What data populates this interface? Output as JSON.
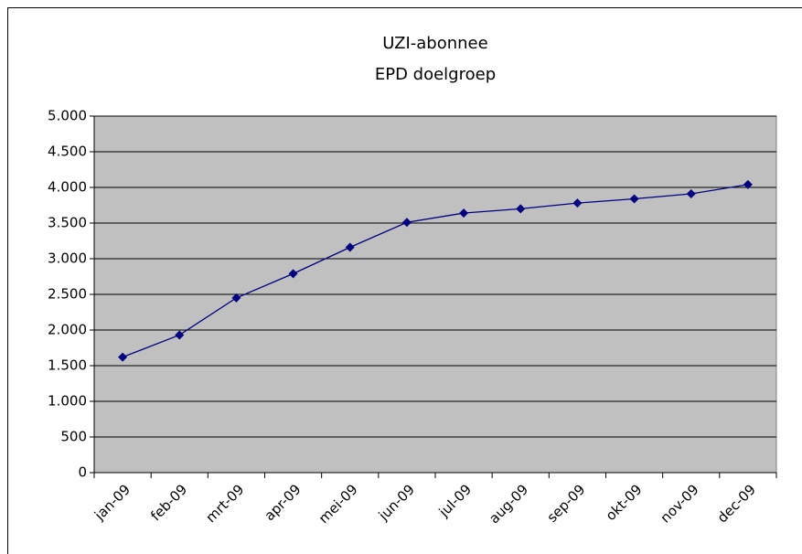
{
  "chart_data": {
    "type": "line",
    "title": [
      "UZI-abonnee",
      "EPD doelgroep"
    ],
    "categories": [
      "jan-09",
      "feb-09",
      "mrt-09",
      "apr-09",
      "mei-09",
      "jun-09",
      "jul-09",
      "aug-09",
      "sep-09",
      "okt-09",
      "nov-09",
      "dec-09"
    ],
    "series": [
      {
        "color": "#000080",
        "values": [
          1620,
          1930,
          2450,
          2790,
          3160,
          3510,
          3640,
          3700,
          3780,
          3840,
          3910,
          4040
        ]
      }
    ],
    "ylim": [
      0,
      5000
    ],
    "yticks": [
      0,
      500,
      {
        "value": 1000,
        "label": "1.000"
      },
      {
        "value": 1500,
        "label": "1.500"
      },
      {
        "value": 2000,
        "label": "2.000"
      },
      {
        "value": 2500,
        "label": "2.500"
      },
      {
        "value": 3000,
        "label": "3.000"
      },
      {
        "value": 3500,
        "label": "3.500"
      },
      {
        "value": 4000,
        "label": "4.000"
      },
      {
        "value": 4500,
        "label": "4.500"
      },
      {
        "value": 5000,
        "label": "5.000"
      }
    ],
    "grid": true
  }
}
